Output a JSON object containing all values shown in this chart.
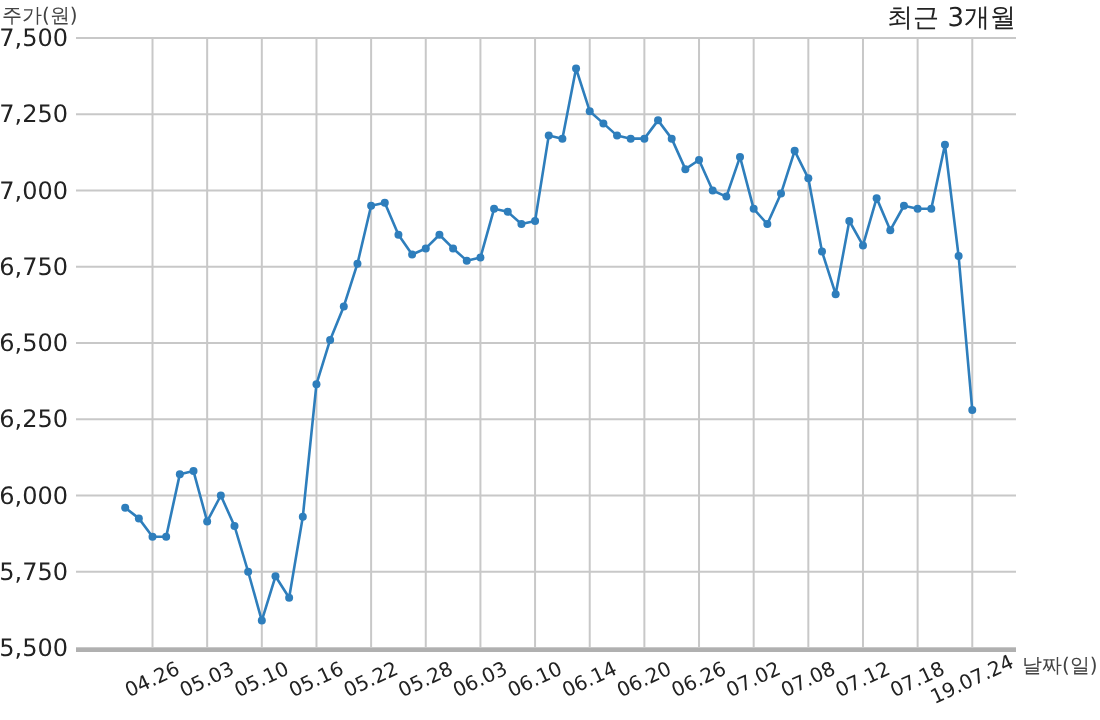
{
  "chart_data": {
    "type": "line",
    "title": "최근 3개월",
    "ylabel": "주가(원)",
    "xlabel": "날짜(일)",
    "categories": [
      null,
      null,
      "04.26",
      null,
      null,
      null,
      "05.03",
      null,
      null,
      null,
      "05.10",
      null,
      null,
      null,
      "05.16",
      null,
      null,
      null,
      "05.22",
      null,
      null,
      null,
      "05.28",
      null,
      null,
      null,
      "06.03",
      null,
      null,
      null,
      "06.10",
      null,
      null,
      null,
      "06.14",
      null,
      null,
      null,
      "06.20",
      null,
      null,
      null,
      "06.26",
      null,
      null,
      null,
      "07.02",
      null,
      null,
      null,
      "07.08",
      null,
      null,
      null,
      "07.12",
      null,
      null,
      null,
      "07.18",
      null,
      null,
      null,
      "19.07.24"
    ],
    "series": [
      {
        "color": "#2e7ebc",
        "values": [
          5960,
          5925,
          5865,
          5865,
          6070,
          6080,
          5915,
          6000,
          5900,
          5750,
          5590,
          5735,
          5665,
          5930,
          6365,
          6510,
          6620,
          6760,
          6950,
          6960,
          6855,
          6790,
          6810,
          6855,
          6810,
          6770,
          6780,
          6940,
          6930,
          6890,
          6900,
          7180,
          7170,
          7400,
          7260,
          7220,
          7180,
          7170,
          7170,
          7230,
          7170,
          7070,
          7100,
          7000,
          6980,
          7110,
          6940,
          6890,
          6990,
          7130,
          7040,
          6800,
          6660,
          6900,
          6820,
          6975,
          6870,
          6950,
          6940,
          6940,
          7150,
          6785,
          6280
        ]
      }
    ],
    "ylim": [
      5500,
      7500
    ],
    "yticks": [
      {
        "value": 5500,
        "label": "5,500"
      },
      {
        "value": 5750,
        "label": "5,750"
      },
      {
        "value": 6000,
        "label": "6,000"
      },
      {
        "value": 6250,
        "label": "6,250"
      },
      {
        "value": 6500,
        "label": "6,500"
      },
      {
        "value": 6750,
        "label": "6,750"
      },
      {
        "value": 7000,
        "label": "7,000"
      },
      {
        "value": 7250,
        "label": "7,250"
      },
      {
        "value": 7500,
        "label": "7,500"
      }
    ],
    "grid": true,
    "marker": "circle",
    "line_style": "solid"
  }
}
